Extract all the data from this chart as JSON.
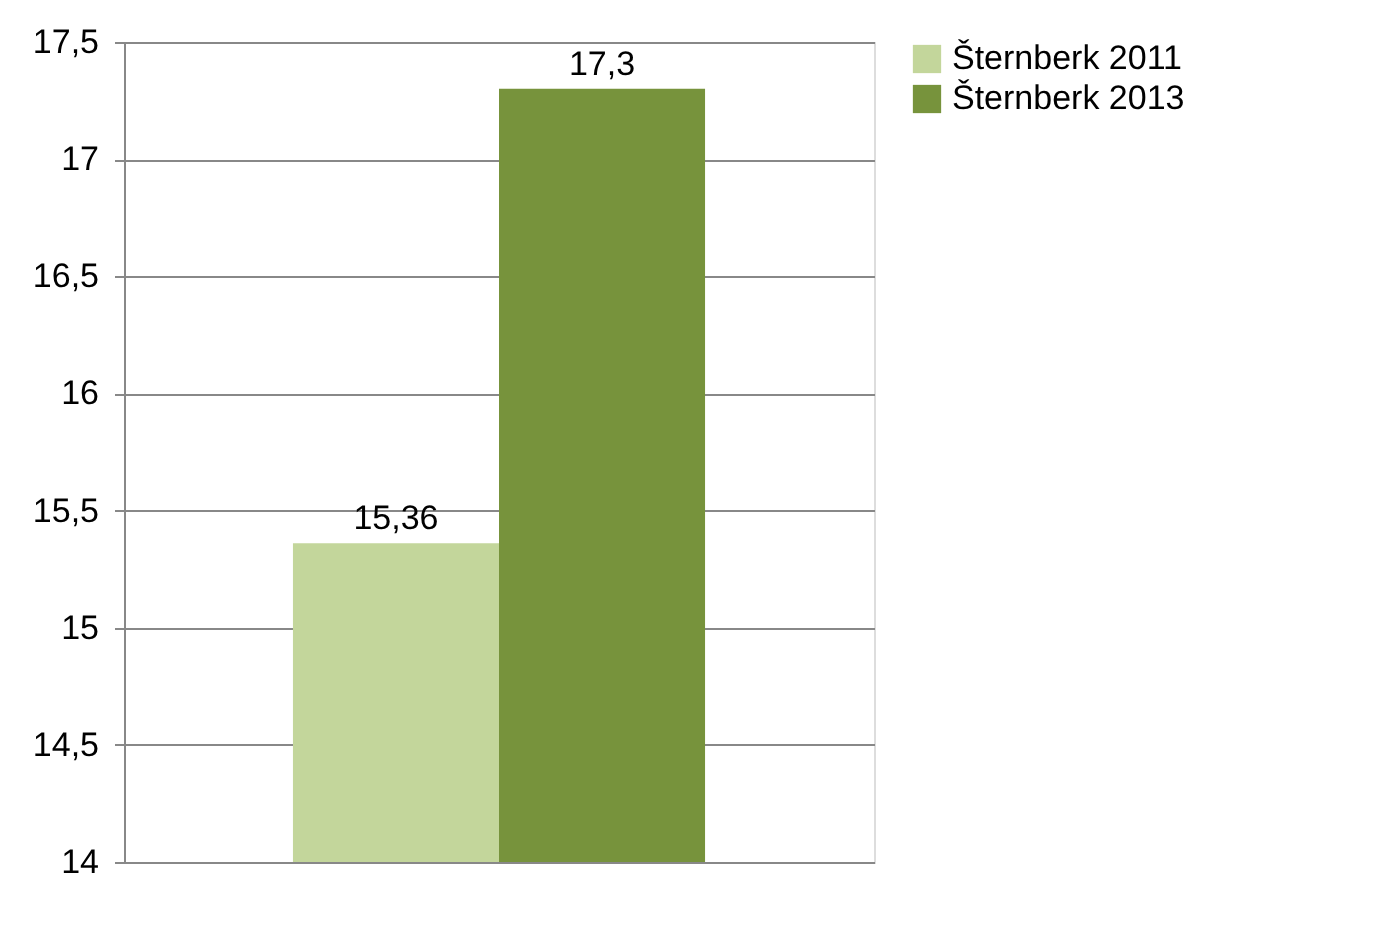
{
  "chart_data": {
    "type": "bar",
    "categories": [
      null
    ],
    "series": [
      {
        "name": "Šternberk 2011",
        "color": "#c3d69b",
        "values": [
          15.36
        ],
        "value_labels": [
          "15,36"
        ]
      },
      {
        "name": "Šternberk 2013",
        "color": "#77933c",
        "values": [
          17.3
        ],
        "value_labels": [
          "17,3"
        ]
      }
    ],
    "ylim": [
      14,
      17.5
    ],
    "yticks": [
      14,
      {
        "value": 14.5,
        "label": "14,5"
      },
      15,
      {
        "value": 15.5,
        "label": "15,5"
      },
      16,
      {
        "value": 16.5,
        "label": "16,5"
      },
      17,
      {
        "value": 17.5,
        "label": "17,5"
      }
    ],
    "grid": "y",
    "legend": "right",
    "tick_labels": "y"
  }
}
